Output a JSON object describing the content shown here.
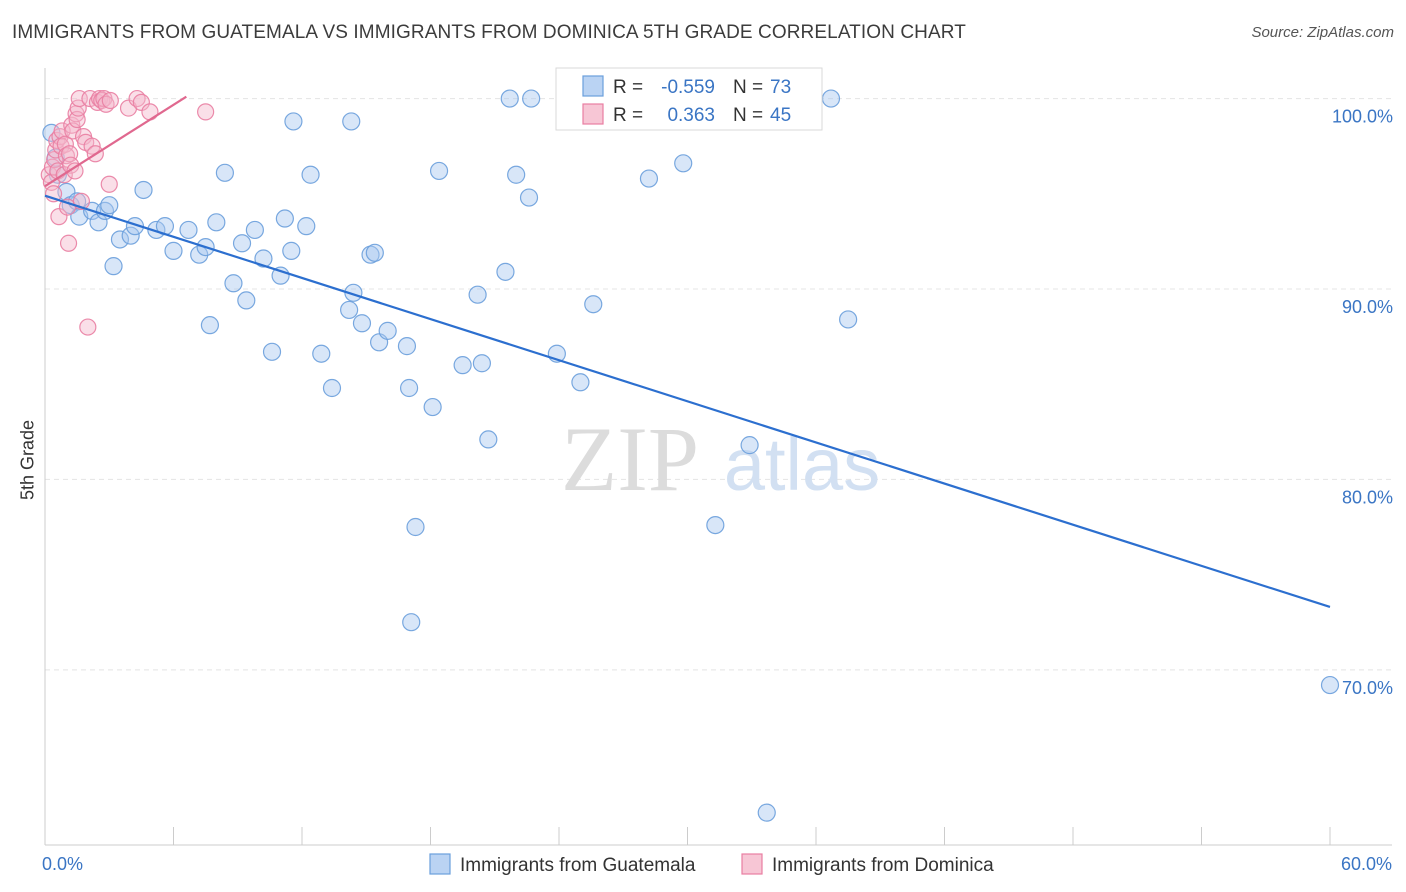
{
  "header": {
    "title": "IMMIGRANTS FROM GUATEMALA VS IMMIGRANTS FROM DOMINICA 5TH GRADE CORRELATION CHART",
    "source": "Source: ZipAtlas.com"
  },
  "watermark": {
    "zip": "ZIP",
    "atlas": "atlas"
  },
  "colors": {
    "blue": "#6a9fdc",
    "blue_fill": "#a9c8f0",
    "blue_line": "#2c6fcf",
    "blue_text": "#3a75c4",
    "pink": "#e97ea2",
    "pink_fill": "#f5b8cb",
    "pink_line": "#e0688f",
    "grid": "#e4e4e4",
    "axis": "#cccccc"
  },
  "legend_top": {
    "rows": [
      {
        "r_label": "R =",
        "r_value": "-0.559",
        "n_label": "N =",
        "n_value": "73",
        "series": "blue"
      },
      {
        "r_label": "R =",
        "r_value": "0.363",
        "n_label": "N =",
        "n_value": "45",
        "series": "pink"
      }
    ]
  },
  "legend_bottom": [
    {
      "label": "Immigrants from Guatemala",
      "series": "blue"
    },
    {
      "label": "Immigrants from Dominica",
      "series": "pink"
    }
  ],
  "chart_data": {
    "type": "scatter",
    "title": "IMMIGRANTS FROM GUATEMALA VS IMMIGRANTS FROM DOMINICA 5TH GRADE CORRELATION CHART",
    "xlabel": "",
    "ylabel": "5th Grade",
    "xlim": [
      0,
      60
    ],
    "ylim": [
      60.8,
      101.5
    ],
    "x_tick_labels": [
      {
        "value": 0,
        "label": "0.0%"
      },
      {
        "value": 60,
        "label": "60.0%"
      }
    ],
    "x_minor_ticks": [
      0,
      6,
      12,
      18,
      24,
      30,
      36,
      42,
      48,
      54,
      60
    ],
    "y_ticks": [
      {
        "value": 100,
        "label": "100.0%"
      },
      {
        "value": 90,
        "label": "90.0%"
      },
      {
        "value": 80,
        "label": "80.0%"
      },
      {
        "value": 70,
        "label": "70.0%"
      }
    ],
    "series": [
      {
        "name": "Immigrants from Guatemala",
        "color": "blue",
        "R": -0.559,
        "N": 73,
        "trend": {
          "x": [
            0,
            60
          ],
          "y": [
            94.9,
            73.3
          ]
        },
        "points": [
          [
            0.3,
            98.2
          ],
          [
            0.5,
            96.9
          ],
          [
            0.6,
            96.0
          ],
          [
            1.0,
            95.1
          ],
          [
            1.2,
            94.4
          ],
          [
            1.5,
            94.6
          ],
          [
            1.6,
            93.8
          ],
          [
            2.2,
            94.1
          ],
          [
            2.5,
            93.5
          ],
          [
            2.8,
            94.1
          ],
          [
            3.0,
            94.4
          ],
          [
            3.2,
            91.2
          ],
          [
            3.5,
            92.6
          ],
          [
            4.0,
            92.8
          ],
          [
            4.2,
            93.3
          ],
          [
            5.2,
            93.1
          ],
          [
            4.6,
            95.2
          ],
          [
            5.6,
            93.3
          ],
          [
            6.0,
            92.0
          ],
          [
            6.7,
            93.1
          ],
          [
            7.2,
            91.8
          ],
          [
            7.5,
            92.2
          ],
          [
            7.7,
            88.1
          ],
          [
            8.0,
            93.5
          ],
          [
            8.4,
            96.1
          ],
          [
            8.8,
            90.3
          ],
          [
            9.2,
            92.4
          ],
          [
            9.4,
            89.4
          ],
          [
            9.8,
            93.1
          ],
          [
            10.2,
            91.6
          ],
          [
            10.6,
            86.7
          ],
          [
            11.0,
            90.7
          ],
          [
            11.2,
            93.7
          ],
          [
            11.5,
            92.0
          ],
          [
            11.6,
            98.8
          ],
          [
            12.2,
            93.3
          ],
          [
            12.4,
            96.0
          ],
          [
            12.9,
            86.6
          ],
          [
            13.4,
            84.8
          ],
          [
            14.2,
            88.9
          ],
          [
            14.4,
            89.8
          ],
          [
            14.3,
            98.8
          ],
          [
            14.8,
            88.2
          ],
          [
            15.2,
            91.8
          ],
          [
            15.4,
            91.9
          ],
          [
            15.6,
            87.2
          ],
          [
            16.0,
            87.8
          ],
          [
            17.0,
            84.8
          ],
          [
            16.9,
            87.0
          ],
          [
            17.3,
            77.5
          ],
          [
            17.1,
            72.5
          ],
          [
            18.1,
            83.8
          ],
          [
            18.4,
            96.2
          ],
          [
            19.5,
            86.0
          ],
          [
            20.2,
            89.7
          ],
          [
            20.4,
            86.1
          ],
          [
            20.7,
            82.1
          ],
          [
            21.5,
            90.9
          ],
          [
            21.7,
            100.0
          ],
          [
            22.7,
            100.0
          ],
          [
            22.6,
            94.8
          ],
          [
            22.0,
            96.0
          ],
          [
            23.9,
            86.6
          ],
          [
            25.0,
            85.1
          ],
          [
            25.6,
            89.2
          ],
          [
            28.2,
            95.8
          ],
          [
            29.8,
            96.6
          ],
          [
            31.3,
            77.6
          ],
          [
            32.9,
            81.8
          ],
          [
            33.7,
            62.5
          ],
          [
            36.7,
            100.0
          ],
          [
            37.5,
            88.4
          ],
          [
            60.0,
            69.2
          ]
        ]
      },
      {
        "name": "Immigrants from Dominica",
        "color": "pink",
        "R": 0.363,
        "N": 45,
        "trend": {
          "x": [
            0,
            6.6
          ],
          "y": [
            95.4,
            100.1
          ]
        },
        "points": [
          [
            0.2,
            96.0
          ],
          [
            0.3,
            95.6
          ],
          [
            0.35,
            96.4
          ],
          [
            0.4,
            95.0
          ],
          [
            0.45,
            96.8
          ],
          [
            0.5,
            97.3
          ],
          [
            0.55,
            97.8
          ],
          [
            0.6,
            96.2
          ],
          [
            0.65,
            93.8
          ],
          [
            0.7,
            98.0
          ],
          [
            0.75,
            97.5
          ],
          [
            0.8,
            98.3
          ],
          [
            0.9,
            96.0
          ],
          [
            0.95,
            97.6
          ],
          [
            1.0,
            97.0
          ],
          [
            1.05,
            94.3
          ],
          [
            1.1,
            92.4
          ],
          [
            1.15,
            97.1
          ],
          [
            1.2,
            96.5
          ],
          [
            1.25,
            98.6
          ],
          [
            1.3,
            98.3
          ],
          [
            1.4,
            96.2
          ],
          [
            1.45,
            99.2
          ],
          [
            1.5,
            98.9
          ],
          [
            1.55,
            99.5
          ],
          [
            1.6,
            100.0
          ],
          [
            1.7,
            94.6
          ],
          [
            1.8,
            98.0
          ],
          [
            1.9,
            97.7
          ],
          [
            2.0,
            88.0
          ],
          [
            2.1,
            100.0
          ],
          [
            2.2,
            97.5
          ],
          [
            2.35,
            97.1
          ],
          [
            2.45,
            99.8
          ],
          [
            2.55,
            100.0
          ],
          [
            2.65,
            99.9
          ],
          [
            2.75,
            100.0
          ],
          [
            2.85,
            99.7
          ],
          [
            3.0,
            95.5
          ],
          [
            3.05,
            99.9
          ],
          [
            3.9,
            99.5
          ],
          [
            4.3,
            100.0
          ],
          [
            4.5,
            99.8
          ],
          [
            4.9,
            99.3
          ],
          [
            7.5,
            99.3
          ]
        ]
      }
    ]
  }
}
